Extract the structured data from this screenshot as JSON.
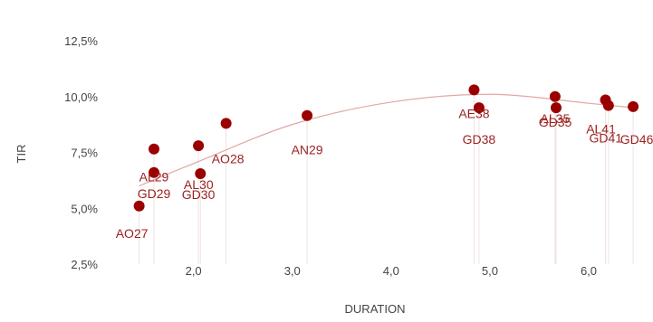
{
  "chart_data": {
    "type": "scatter",
    "xlabel": "DURATION",
    "ylabel": "TIR",
    "x_ticks": [
      "2,0",
      "3,0",
      "4,0",
      "5,0",
      "6,0"
    ],
    "y_ticks": [
      "2,5%",
      "5,0%",
      "7,5%",
      "10,0%",
      "12,5%"
    ],
    "xlim": [
      1.2,
      6.6
    ],
    "ylim": [
      2.0,
      12.9
    ],
    "grid": false,
    "legend": "none",
    "colors": {
      "points": "#9b0000",
      "trendline": "#e2a6a6",
      "labels": "#9b1f1f",
      "axis_text": "#444444"
    },
    "points": [
      {
        "label": "AO27",
        "x": 1.45,
        "y": 5.1
      },
      {
        "label": "AL29",
        "x": 1.6,
        "y": 6.6
      },
      {
        "label": "GD29",
        "x": 1.6,
        "y": 7.65
      },
      {
        "label": "AL30",
        "x": 2.07,
        "y": 6.55
      },
      {
        "label": "GD30",
        "x": 2.05,
        "y": 7.8
      },
      {
        "label": "AO28",
        "x": 2.33,
        "y": 8.8
      },
      {
        "label": "AN29",
        "x": 3.15,
        "y": 9.15
      },
      {
        "label": "AE38",
        "x": 4.84,
        "y": 10.3
      },
      {
        "label": "GD38",
        "x": 4.89,
        "y": 9.5
      },
      {
        "label": "AL35",
        "x": 5.66,
        "y": 10.0
      },
      {
        "label": "GD35",
        "x": 5.67,
        "y": 9.5
      },
      {
        "label": "AL41",
        "x": 6.17,
        "y": 9.85
      },
      {
        "label": "GD41",
        "x": 6.2,
        "y": 9.6
      },
      {
        "label": "GD46",
        "x": 6.45,
        "y": 9.55
      }
    ],
    "trendline": {
      "type": "polynomial",
      "points": [
        {
          "x": 1.45,
          "y": 6.0
        },
        {
          "x": 2.0,
          "y": 7.0
        },
        {
          "x": 3.0,
          "y": 8.75
        },
        {
          "x": 4.0,
          "y": 9.75
        },
        {
          "x": 5.0,
          "y": 10.1
        },
        {
          "x": 6.0,
          "y": 9.7
        },
        {
          "x": 6.45,
          "y": 9.5
        }
      ]
    }
  }
}
